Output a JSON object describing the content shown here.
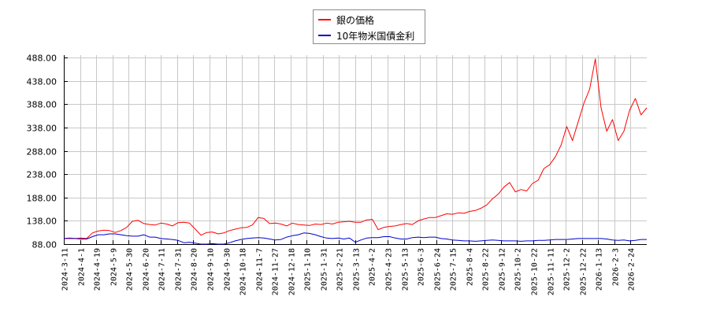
{
  "legend": {
    "items": [
      {
        "label": "銀の価格",
        "color": "#ff0000"
      },
      {
        "label": "10年物米国債金利",
        "color": "#0000cc"
      }
    ]
  },
  "chart_data": {
    "type": "line",
    "title": "",
    "xlabel": "",
    "ylabel": "",
    "ylim": [
      88,
      488
    ],
    "grid": true,
    "legend_position": "top-center",
    "y_ticks": [
      "88.00",
      "138.00",
      "188.00",
      "238.00",
      "288.00",
      "338.00",
      "388.00",
      "438.00",
      "488.00"
    ],
    "x_ticks": [
      "2024-3-11",
      "2024-4-1",
      "2024-4-19",
      "2024-5-9",
      "2024-5-30",
      "2024-6-20",
      "2024-7-11",
      "2024-7-31",
      "2024-8-20",
      "2024-9-10",
      "2024-9-30",
      "2024-10-18",
      "2024-11-7",
      "2024-11-27",
      "2024-12-18",
      "2025-1-10",
      "2025-1-31",
      "2025-2-21",
      "2025-3-13",
      "2025-4-2",
      "2025-4-23",
      "2025-5-13",
      "2025-6-3",
      "2025-6-24",
      "2025-7-15",
      "2025-8-4",
      "2025-8-22",
      "2025-9-12",
      "2025-10-2",
      "2025-10-22",
      "2025-11-11",
      "2025-12-2",
      "2025-12-22",
      "2026-1-13",
      "2026-2-3",
      "2026-2-24"
    ],
    "series": [
      {
        "name": "銀の価格",
        "color": "#ff0000",
        "values": [
          100,
          101,
          100,
          101,
          100,
          112,
          116,
          118,
          117,
          113,
          117,
          124,
          137,
          139,
          132,
          130,
          129,
          133,
          131,
          127,
          134,
          135,
          133,
          120,
          107,
          113,
          114,
          110,
          112,
          117,
          120,
          123,
          124,
          129,
          145,
          143,
          132,
          133,
          131,
          127,
          133,
          130,
          129,
          128,
          131,
          130,
          133,
          131,
          135,
          136,
          137,
          135,
          135,
          140,
          141,
          119,
          124,
          126,
          127,
          130,
          132,
          130,
          138,
          142,
          145,
          145,
          149,
          153,
          152,
          155,
          154,
          158,
          160,
          165,
          172,
          185,
          195,
          210,
          220,
          200,
          205,
          202,
          218,
          225,
          250,
          258,
          275,
          300,
          340,
          310,
          350,
          390,
          420,
          485,
          380,
          330,
          355,
          310,
          330,
          375,
          400,
          365,
          380
        ]
      },
      {
        "name": "10年物米国債金利",
        "color": "#0000cc",
        "values": [
          100,
          100,
          100,
          99,
          99,
          104,
          108,
          108,
          110,
          110,
          108,
          106,
          105,
          105,
          108,
          103,
          103,
          100,
          99,
          98,
          96,
          91,
          92,
          90,
          88,
          88,
          89,
          87,
          87,
          91,
          95,
          98,
          100,
          101,
          102,
          101,
          99,
          97,
          98,
          103,
          106,
          108,
          112,
          111,
          108,
          104,
          101,
          100,
          101,
          99,
          101,
          92,
          97,
          101,
          102,
          102,
          104,
          104,
          101,
          99,
          99,
          102,
          103,
          102,
          103,
          103,
          100,
          99,
          97,
          96,
          95,
          95,
          94,
          95,
          96,
          97,
          96,
          95,
          95,
          95,
          94,
          95,
          95,
          96,
          96,
          97,
          98,
          98,
          98,
          99,
          100,
          100,
          100,
          100,
          100,
          99,
          97,
          96,
          97,
          95,
          96,
          98,
          98
        ]
      }
    ]
  }
}
